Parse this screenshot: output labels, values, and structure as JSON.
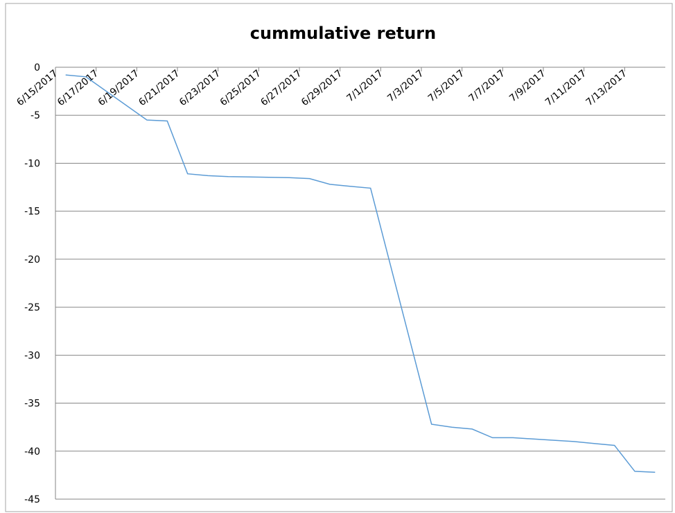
{
  "chart_data": {
    "type": "line",
    "title": "cummulative return",
    "x": [
      "6/15/2017",
      "6/16/2017",
      "6/19/2017",
      "6/20/2017",
      "6/21/2017",
      "6/22/2017",
      "6/23/2017",
      "6/26/2017",
      "6/27/2017",
      "6/28/2017",
      "6/29/2017",
      "6/30/2017",
      "7/3/2017",
      "7/4/2017",
      "7/5/2017",
      "7/6/2017",
      "7/7/2017",
      "7/10/2017",
      "7/11/2017",
      "7/12/2017",
      "7/13/2017",
      "7/14/2017"
    ],
    "series": [
      {
        "name": "cummulative return",
        "color": "#5b9bd5",
        "values": [
          -0.8,
          -1.0,
          -5.5,
          -5.6,
          -11.1,
          -11.3,
          -11.4,
          -11.5,
          -11.6,
          -12.2,
          -12.4,
          -12.6,
          -37.2,
          -37.5,
          -37.7,
          -38.6,
          -38.6,
          -39.0,
          -39.2,
          -39.4,
          -42.1,
          -42.2
        ]
      }
    ],
    "xlim": [
      "6/15/2017",
      "7/15/2017"
    ],
    "xticks": [
      "6/15/2017",
      "6/17/2017",
      "6/19/2017",
      "6/21/2017",
      "6/23/2017",
      "6/25/2017",
      "6/27/2017",
      "6/29/2017",
      "7/1/2017",
      "7/3/2017",
      "7/5/2017",
      "7/7/2017",
      "7/9/2017",
      "7/11/2017",
      "7/13/2017"
    ],
    "ylim": [
      -45,
      0
    ],
    "yticks": [
      0,
      -5,
      -10,
      -15,
      -20,
      -25,
      -30,
      -35,
      -40,
      -45
    ],
    "grid": true
  }
}
